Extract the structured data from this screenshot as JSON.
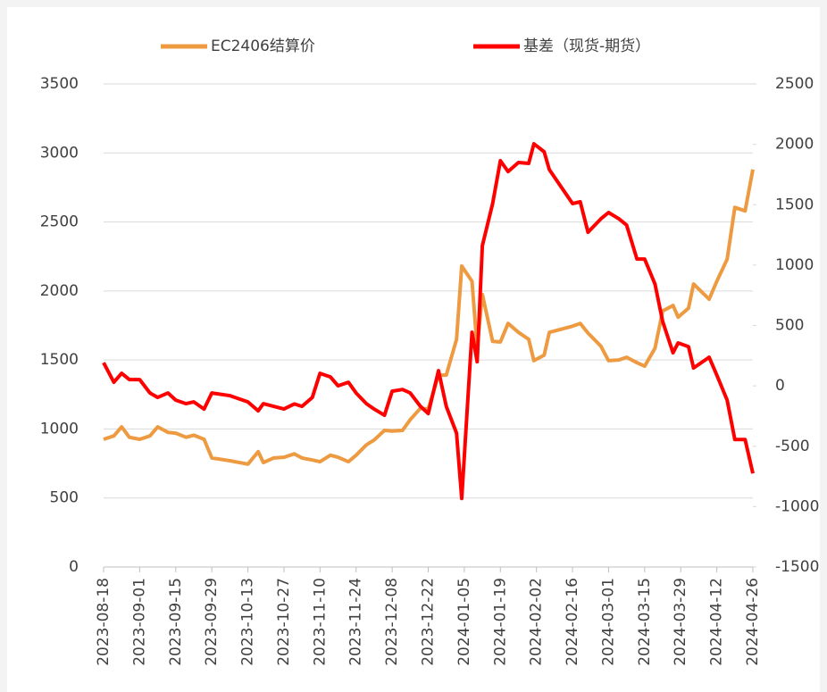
{
  "chart_data": {
    "type": "line",
    "x": [
      "2023-08-18",
      "2023-08-22",
      "2023-08-25",
      "2023-08-28",
      "2023-09-01",
      "2023-09-05",
      "2023-09-08",
      "2023-09-12",
      "2023-09-15",
      "2023-09-19",
      "2023-09-22",
      "2023-09-26",
      "2023-09-29",
      "2023-10-06",
      "2023-10-13",
      "2023-10-17",
      "2023-10-19",
      "2023-10-23",
      "2023-10-27",
      "2023-10-31",
      "2023-11-03",
      "2023-11-07",
      "2023-11-10",
      "2023-11-14",
      "2023-11-17",
      "2023-11-21",
      "2023-11-24",
      "2023-11-28",
      "2023-12-01",
      "2023-12-05",
      "2023-12-08",
      "2023-12-12",
      "2023-12-15",
      "2023-12-19",
      "2023-12-22",
      "2023-12-26",
      "2023-12-29",
      "2024-01-02",
      "2024-01-04",
      "2024-01-08",
      "2024-01-10",
      "2024-01-12",
      "2024-01-16",
      "2024-01-19",
      "2024-01-22",
      "2024-01-26",
      "2024-01-30",
      "2024-02-01",
      "2024-02-05",
      "2024-02-07",
      "2024-02-16",
      "2024-02-19",
      "2024-02-22",
      "2024-02-27",
      "2024-03-01",
      "2024-03-05",
      "2024-03-08",
      "2024-03-12",
      "2024-03-15",
      "2024-03-19",
      "2024-03-22",
      "2024-03-26",
      "2024-03-28",
      "2024-04-01",
      "2024-04-03",
      "2024-04-09",
      "2024-04-12",
      "2024-04-16",
      "2024-04-19",
      "2024-04-23",
      "2024-04-26"
    ],
    "series": [
      {
        "name": "EC2406结算价",
        "color": "#ed9a41",
        "axis": "y",
        "values": [
          925,
          950,
          1015,
          940,
          925,
          950,
          1015,
          975,
          970,
          940,
          955,
          925,
          790,
          770,
          745,
          835,
          757,
          790,
          795,
          820,
          790,
          775,
          763,
          810,
          795,
          763,
          810,
          885,
          920,
          990,
          985,
          990,
          1067,
          1150,
          1145,
          1390,
          1390,
          1650,
          2180,
          2070,
          1585,
          1975,
          1635,
          1630,
          1765,
          1700,
          1650,
          1495,
          1535,
          1700,
          1745,
          1765,
          1695,
          1600,
          1495,
          1500,
          1520,
          1480,
          1455,
          1585,
          1855,
          1895,
          1810,
          1875,
          2050,
          1940,
          2070,
          2230,
          2605,
          2580,
          2880
        ]
      },
      {
        "name": "基差（现货-期货）",
        "color": "#ff0000",
        "axis": "y2",
        "values": [
          192,
          30,
          104,
          52,
          52,
          -59,
          -96,
          -59,
          -118,
          -148,
          -133,
          -192,
          -59,
          -81,
          -133,
          -207,
          -148,
          -170,
          -192,
          -150,
          -170,
          -96,
          104,
          74,
          0,
          30,
          -59,
          -148,
          -192,
          -244,
          -44,
          -30,
          -59,
          -170,
          -229,
          126,
          -170,
          -392,
          -932,
          444,
          200,
          1161,
          1509,
          1864,
          1775,
          1849,
          1842,
          2004,
          1938,
          1790,
          1509,
          1524,
          1272,
          1383,
          1435,
          1383,
          1331,
          1050,
          1050,
          843,
          533,
          274,
          355,
          325,
          148,
          237,
          89,
          -118,
          -444,
          -444,
          -725
        ]
      }
    ],
    "xlim": [
      "2023-08-18",
      "2024-04-26"
    ],
    "xticks": [
      "2023-08-18",
      "2023-09-01",
      "2023-09-15",
      "2023-09-29",
      "2023-10-13",
      "2023-10-27",
      "2023-11-10",
      "2023-11-24",
      "2023-12-08",
      "2023-12-22",
      "2024-01-05",
      "2024-01-19",
      "2024-02-02",
      "2024-02-16",
      "2024-03-01",
      "2024-03-15",
      "2024-03-29",
      "2024-04-12",
      "2024-04-26"
    ],
    "ylim": [
      0,
      3500
    ],
    "yticks": [
      0,
      500,
      1000,
      1500,
      2000,
      2500,
      3000,
      3500
    ],
    "y2lim": [
      -1500,
      2500
    ],
    "y2ticks": [
      -1500,
      -1000,
      -500,
      0,
      500,
      1000,
      1500,
      2000,
      2500
    ],
    "grid": true,
    "legend": "top"
  }
}
